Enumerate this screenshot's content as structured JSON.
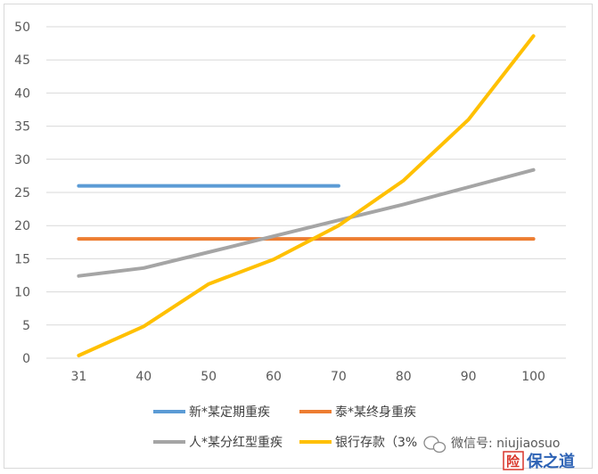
{
  "chart_data": {
    "type": "line",
    "categories": [
      "31",
      "40",
      "50",
      "60",
      "70",
      "80",
      "90",
      "100"
    ],
    "x_values": [
      31,
      40,
      50,
      60,
      70,
      80,
      90,
      100
    ],
    "ylim": [
      0,
      50
    ],
    "y_ticks": [
      "0",
      "5",
      "10",
      "15",
      "20",
      "25",
      "30",
      "35",
      "40",
      "45",
      "50"
    ],
    "grid": "horizontal",
    "legend_position": "bottom",
    "series": [
      {
        "name": "新*某定期重疾",
        "color": "#5b9bd5",
        "points": [
          [
            31,
            26
          ],
          [
            70,
            26
          ]
        ]
      },
      {
        "name": "泰*某终身重疾",
        "color": "#ed7d31",
        "points": [
          [
            31,
            18
          ],
          [
            100,
            18
          ]
        ]
      },
      {
        "name": "人*某分红型重疾",
        "color": "#a5a5a5",
        "points": [
          [
            31,
            12.4
          ],
          [
            40,
            13.6
          ],
          [
            50,
            16.0
          ],
          [
            60,
            18.4
          ],
          [
            70,
            20.8
          ],
          [
            80,
            23.2
          ],
          [
            90,
            25.8
          ],
          [
            100,
            28.4
          ]
        ]
      },
      {
        "name": "银行存款（3%",
        "color": "#ffc000",
        "points": [
          [
            31,
            0.4
          ],
          [
            40,
            4.8
          ],
          [
            50,
            11.2
          ],
          [
            60,
            14.9
          ],
          [
            70,
            20.0
          ],
          [
            80,
            26.8
          ],
          [
            90,
            36.0
          ],
          [
            100,
            48.6
          ]
        ]
      }
    ]
  },
  "watermark": {
    "wechat_text": "微信号: niujiaosuo",
    "logo_text": "保之道"
  }
}
